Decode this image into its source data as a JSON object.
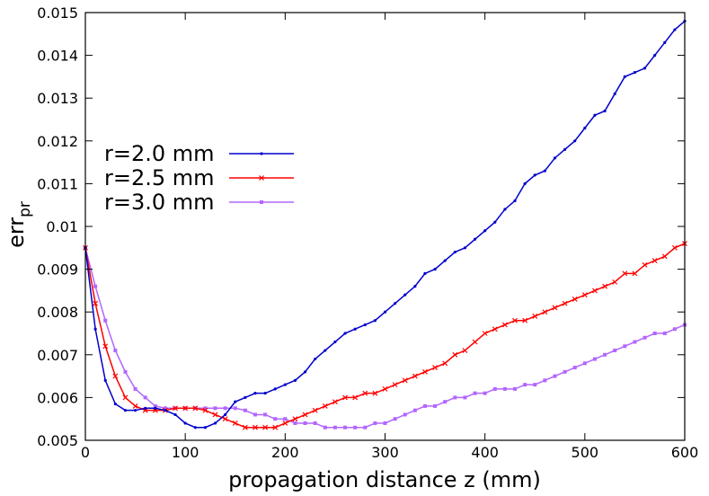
{
  "chart_data": {
    "type": "line",
    "xlabel": "propagation distance z (mm)",
    "ylabel": {
      "main": "err",
      "sub": "pr"
    },
    "xlim": [
      0,
      600
    ],
    "ylim": [
      0.005,
      0.015
    ],
    "xticks": [
      0,
      100,
      200,
      300,
      400,
      500,
      600
    ],
    "xtick_labels": [
      "0",
      "100",
      "200",
      "300",
      "400",
      "500",
      "600"
    ],
    "yticks": [
      0.005,
      0.006,
      0.007,
      0.008,
      0.009,
      0.01,
      0.011,
      0.012,
      0.013,
      0.014,
      0.015
    ],
    "ytick_labels": [
      "0.005",
      "0.006",
      "0.007",
      "0.008",
      "0.009",
      "0.01",
      "0.011",
      "0.012",
      "0.013",
      "0.014",
      "0.015"
    ],
    "grid": false,
    "legend_position": "left",
    "series": [
      {
        "name": "r=2.0 mm",
        "color": "#0000cc",
        "marker": "dot",
        "x": [
          0,
          10,
          20,
          30,
          40,
          50,
          60,
          70,
          80,
          90,
          100,
          110,
          120,
          130,
          140,
          150,
          160,
          170,
          180,
          190,
          200,
          210,
          220,
          230,
          240,
          250,
          260,
          270,
          280,
          290,
          300,
          310,
          320,
          330,
          340,
          350,
          360,
          370,
          380,
          390,
          400,
          410,
          420,
          430,
          440,
          450,
          460,
          470,
          480,
          490,
          500,
          510,
          520,
          530,
          540,
          550,
          560,
          570,
          580,
          590,
          600
        ],
        "y": [
          0.0095,
          0.0076,
          0.0064,
          0.00585,
          0.0057,
          0.0057,
          0.00575,
          0.00575,
          0.0057,
          0.0056,
          0.0054,
          0.0053,
          0.0053,
          0.0054,
          0.0056,
          0.0059,
          0.006,
          0.0061,
          0.0061,
          0.0062,
          0.0063,
          0.0064,
          0.0066,
          0.0069,
          0.0071,
          0.0073,
          0.0075,
          0.0076,
          0.0077,
          0.0078,
          0.008,
          0.0082,
          0.0084,
          0.0086,
          0.0089,
          0.009,
          0.0092,
          0.0094,
          0.0095,
          0.0097,
          0.0099,
          0.0101,
          0.0104,
          0.0106,
          0.011,
          0.0112,
          0.0113,
          0.0116,
          0.0118,
          0.012,
          0.0123,
          0.0126,
          0.0127,
          0.0131,
          0.0135,
          0.0136,
          0.0137,
          0.014,
          0.0143,
          0.0146,
          0.0148
        ]
      },
      {
        "name": "r=2.5 mm",
        "color": "#ff0000",
        "marker": "x",
        "x": [
          0,
          10,
          20,
          30,
          40,
          50,
          60,
          70,
          80,
          90,
          100,
          110,
          120,
          130,
          140,
          150,
          160,
          170,
          180,
          190,
          200,
          210,
          220,
          230,
          240,
          250,
          260,
          270,
          280,
          290,
          300,
          310,
          320,
          330,
          340,
          350,
          360,
          370,
          380,
          390,
          400,
          410,
          420,
          430,
          440,
          450,
          460,
          470,
          480,
          490,
          500,
          510,
          520,
          530,
          540,
          550,
          560,
          570,
          580,
          590,
          600
        ],
        "y": [
          0.0095,
          0.0082,
          0.0072,
          0.0065,
          0.006,
          0.0058,
          0.0057,
          0.0057,
          0.0057,
          0.00575,
          0.00575,
          0.00575,
          0.0057,
          0.0056,
          0.0055,
          0.0054,
          0.0053,
          0.0053,
          0.0053,
          0.0053,
          0.0054,
          0.0055,
          0.0056,
          0.0057,
          0.0058,
          0.0059,
          0.006,
          0.006,
          0.0061,
          0.0061,
          0.0062,
          0.0063,
          0.0064,
          0.0065,
          0.0066,
          0.0067,
          0.0068,
          0.007,
          0.0071,
          0.0073,
          0.0075,
          0.0076,
          0.0077,
          0.0078,
          0.0078,
          0.0079,
          0.008,
          0.0081,
          0.0082,
          0.0083,
          0.0084,
          0.0085,
          0.0086,
          0.0087,
          0.0089,
          0.0089,
          0.0091,
          0.0092,
          0.0093,
          0.0095,
          0.0096
        ]
      },
      {
        "name": "r=3.0 mm",
        "color": "#b266ff",
        "marker": "square",
        "x": [
          0,
          10,
          20,
          30,
          40,
          50,
          60,
          70,
          80,
          90,
          100,
          110,
          120,
          130,
          140,
          150,
          160,
          170,
          180,
          190,
          200,
          210,
          220,
          230,
          240,
          250,
          260,
          270,
          280,
          290,
          300,
          310,
          320,
          330,
          340,
          350,
          360,
          370,
          380,
          390,
          400,
          410,
          420,
          430,
          440,
          450,
          460,
          470,
          480,
          490,
          500,
          510,
          520,
          530,
          540,
          550,
          560,
          570,
          580,
          590,
          600
        ],
        "y": [
          0.0095,
          0.0086,
          0.0078,
          0.0071,
          0.0066,
          0.0062,
          0.006,
          0.0058,
          0.00575,
          0.00575,
          0.00575,
          0.00575,
          0.00575,
          0.00575,
          0.00575,
          0.00575,
          0.0057,
          0.0056,
          0.0056,
          0.0055,
          0.0055,
          0.0054,
          0.0054,
          0.0054,
          0.0053,
          0.0053,
          0.0053,
          0.0053,
          0.0053,
          0.0054,
          0.0054,
          0.0055,
          0.0056,
          0.0057,
          0.0058,
          0.0058,
          0.0059,
          0.006,
          0.006,
          0.0061,
          0.0061,
          0.0062,
          0.0062,
          0.0062,
          0.0063,
          0.0063,
          0.0064,
          0.0065,
          0.0066,
          0.0067,
          0.0068,
          0.0069,
          0.007,
          0.0071,
          0.0072,
          0.0073,
          0.0074,
          0.0075,
          0.0075,
          0.0076,
          0.0077
        ]
      }
    ]
  }
}
